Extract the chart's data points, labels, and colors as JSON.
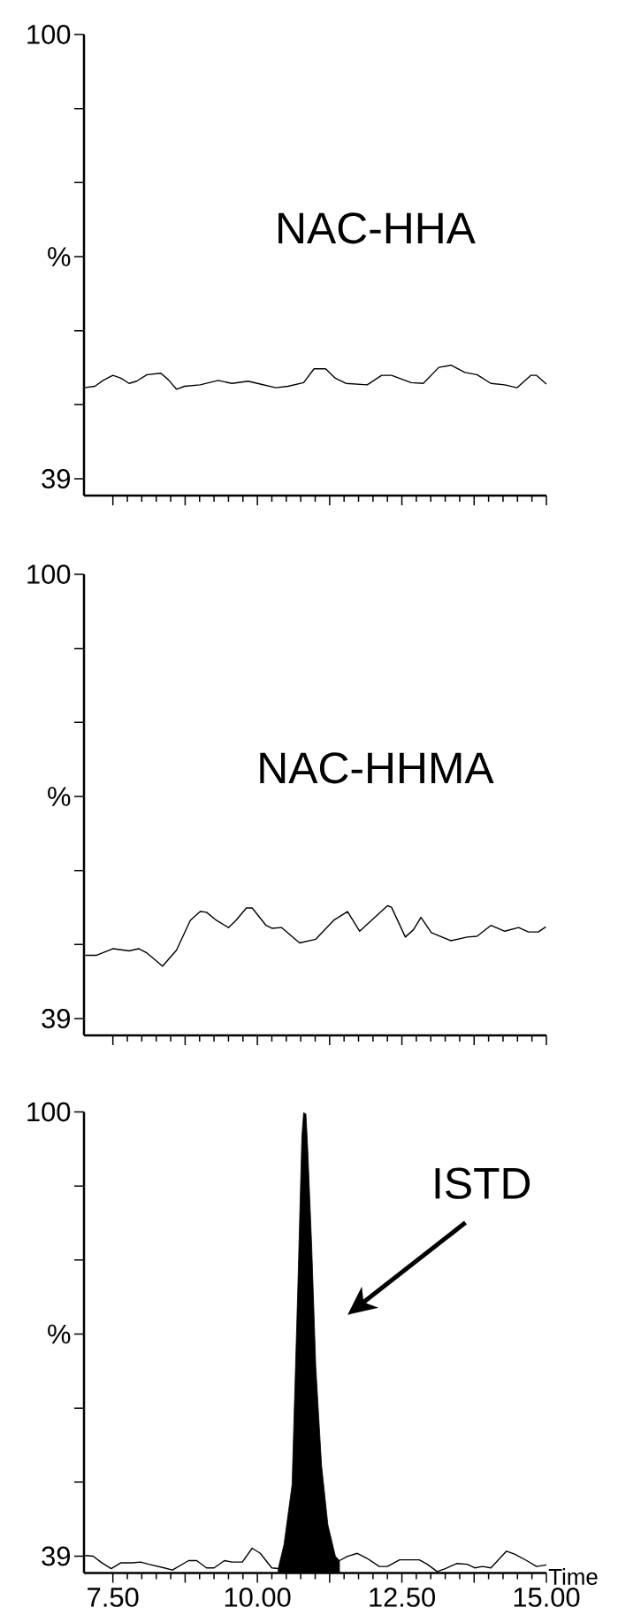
{
  "chart_data": [
    {
      "type": "line",
      "title": "NAC-HHA",
      "xlim": [
        7.0,
        15.0
      ],
      "ylim": [
        36.7,
        100
      ],
      "tick_labels": "y",
      "xticks": [
        {
          "value": 7.5,
          "label": null
        },
        {
          "value": 8.75,
          "label": null
        },
        {
          "value": 10,
          "label": null
        },
        {
          "value": 11.25,
          "label": null
        },
        {
          "value": 12.5,
          "label": null
        },
        {
          "value": 13.75,
          "label": null
        },
        {
          "value": 15,
          "label": null
        }
      ],
      "yticks": [
        100,
        {
          "value": 89.83,
          "label": null
        },
        {
          "value": 79.67,
          "label": null
        },
        {
          "value": 69.5,
          "label": "%"
        },
        {
          "value": 59.33,
          "label": null
        },
        {
          "value": 49.17,
          "label": null
        },
        39
      ],
      "series": [
        {
          "color": "#000000",
          "x": [
            7.0,
            7.19,
            7.33,
            7.5,
            7.64,
            7.78,
            7.91,
            8.09,
            8.33,
            8.46,
            8.6,
            8.74,
            9.01,
            9.32,
            9.56,
            9.84,
            10.05,
            10.32,
            10.53,
            10.8,
            10.98,
            11.18,
            11.35,
            11.53,
            11.9,
            12.15,
            12.32,
            12.66,
            12.87,
            13.14,
            13.35,
            13.59,
            13.8,
            14.04,
            14.28,
            14.49,
            14.73,
            14.83,
            15.0
          ],
          "values": [
            51.5,
            51.7,
            52.5,
            53.2,
            52.8,
            52.1,
            52.4,
            53.3,
            53.5,
            52.6,
            51.3,
            51.7,
            51.9,
            52.5,
            52.1,
            52.4,
            52.0,
            51.5,
            51.7,
            52.2,
            54.1,
            54.1,
            52.8,
            52.1,
            51.9,
            53.2,
            53.2,
            52.2,
            52.1,
            54.3,
            54.6,
            53.6,
            53.3,
            52.1,
            51.9,
            51.5,
            53.2,
            53.2,
            52.0
          ]
        }
      ]
    },
    {
      "type": "line",
      "title": "NAC-HHMA",
      "xlim": [
        7.0,
        15.0
      ],
      "ylim": [
        36.7,
        100
      ],
      "tick_labels": "y",
      "xticks": [
        {
          "value": 7.5,
          "label": null
        },
        {
          "value": 8.75,
          "label": null
        },
        {
          "value": 10,
          "label": null
        },
        {
          "value": 11.25,
          "label": null
        },
        {
          "value": 12.5,
          "label": null
        },
        {
          "value": 13.75,
          "label": null
        },
        {
          "value": 15,
          "label": null
        }
      ],
      "yticks": [
        100,
        {
          "value": 89.83,
          "label": null
        },
        {
          "value": 79.67,
          "label": null
        },
        {
          "value": 69.5,
          "label": "%"
        },
        {
          "value": 59.33,
          "label": null
        },
        {
          "value": 49.17,
          "label": null
        },
        39
      ],
      "series": [
        {
          "color": "#000000",
          "x": [
            7.02,
            7.22,
            7.5,
            7.78,
            7.95,
            8.09,
            8.36,
            8.6,
            8.84,
            9.01,
            9.12,
            9.29,
            9.5,
            9.63,
            9.81,
            9.91,
            10.15,
            10.25,
            10.42,
            10.73,
            11.01,
            11.32,
            11.56,
            11.77,
            12.25,
            12.32,
            12.56,
            12.7,
            12.83,
            13.01,
            13.35,
            13.63,
            13.8,
            14.04,
            14.28,
            14.52,
            14.69,
            14.86,
            14.99
          ],
          "values": [
            47.7,
            47.7,
            48.6,
            48.3,
            48.6,
            48.0,
            46.2,
            48.4,
            52.5,
            53.7,
            53.6,
            52.5,
            51.5,
            52.5,
            54.2,
            54.2,
            51.8,
            51.4,
            51.5,
            49.4,
            49.9,
            52.5,
            53.7,
            51.0,
            54.5,
            54.3,
            50.2,
            51.2,
            52.9,
            50.8,
            49.7,
            50.2,
            50.3,
            51.8,
            51.0,
            51.5,
            50.9,
            50.9,
            51.6
          ]
        }
      ]
    },
    {
      "type": "line",
      "xlabel": "Time",
      "xlim": [
        7.0,
        15.0
      ],
      "ylim": [
        36.7,
        100
      ],
      "xticks": [
        {
          "value": 7.5,
          "label": "7.50"
        },
        {
          "value": 8.75,
          "label": null
        },
        {
          "value": 10,
          "label": "10.00"
        },
        {
          "value": 11.25,
          "label": null
        },
        {
          "value": 12.5,
          "label": "12.50"
        },
        {
          "value": 13.75,
          "label": null
        },
        {
          "value": 15,
          "label": "15.00"
        }
      ],
      "yticks": [
        100,
        {
          "value": 89.83,
          "label": null
        },
        {
          "value": 79.67,
          "label": null
        },
        {
          "value": 69.5,
          "label": "%"
        },
        {
          "value": 59.33,
          "label": null
        },
        {
          "value": 49.17,
          "label": null
        },
        39
      ],
      "annotations": [
        "ISTD"
      ],
      "series": [
        {
          "color": "#000000",
          "x": [
            7.02,
            7.16,
            7.29,
            7.47,
            7.64,
            7.84,
            7.98,
            8.12,
            8.39,
            8.53,
            8.81,
            8.95,
            9.12,
            9.25,
            9.43,
            9.56,
            9.74,
            9.91,
            10.05,
            10.25,
            10.36
          ],
          "values": [
            39.1,
            39.0,
            38.2,
            37.3,
            38.1,
            38.1,
            38.2,
            37.9,
            37.4,
            37.1,
            38.4,
            38.4,
            37.4,
            37.4,
            38.4,
            38.2,
            38.2,
            40.1,
            39.4,
            37.4,
            37.3
          ]
        },
        {
          "type": "area",
          "color": "#000000",
          "x": [
            10.36,
            10.46,
            10.6,
            10.7,
            10.77,
            10.8,
            10.84,
            10.87,
            10.94,
            11.01,
            11.11,
            11.22,
            11.35,
            11.42
          ],
          "values": [
            37.3,
            40.6,
            48.8,
            76.0,
            96.7,
            99.9,
            99.7,
            95.1,
            81.5,
            65.1,
            51.5,
            43.3,
            39.0,
            38.4
          ]
        },
        {
          "color": "#000000",
          "x": [
            11.42,
            11.56,
            11.73,
            11.9,
            12.11,
            12.25,
            12.46,
            12.8,
            12.94,
            13.11,
            13.25,
            13.45,
            13.63,
            13.76,
            13.9,
            14.04,
            14.31,
            14.45,
            14.66,
            14.83,
            15.0
          ],
          "values": [
            38.4,
            39.0,
            39.4,
            38.7,
            37.6,
            37.6,
            38.5,
            38.5,
            37.9,
            36.9,
            37.3,
            38.0,
            37.9,
            37.4,
            37.6,
            37.4,
            39.7,
            39.3,
            38.4,
            37.6,
            37.8
          ]
        }
      ]
    }
  ]
}
